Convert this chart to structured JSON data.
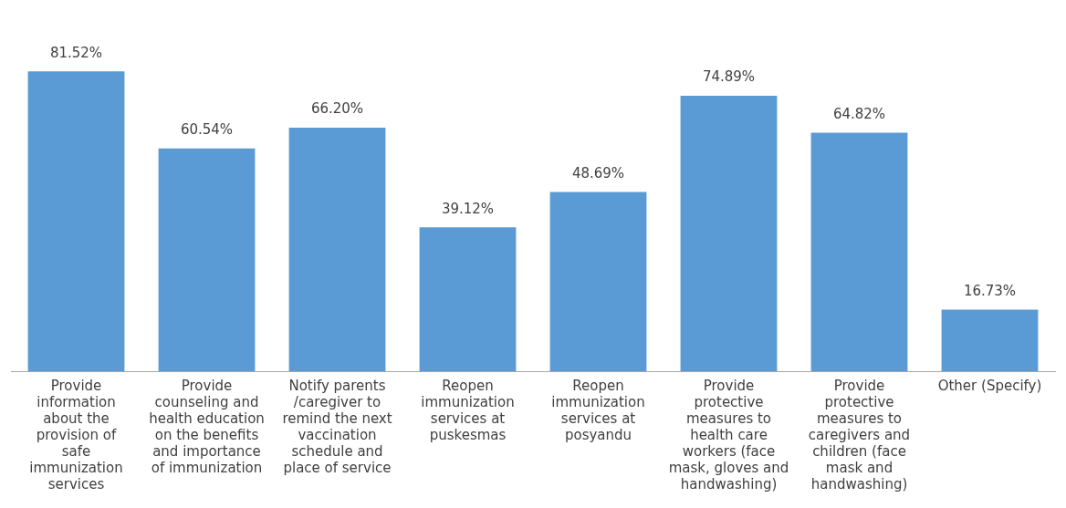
{
  "chart_data": {
    "type": "bar",
    "categories": [
      "Provide information about the provision of safe immunization services",
      "Provide counseling and health education on the benefits and importance of immunization",
      "Notify parents /caregiver to remind the next vaccination schedule and place of service",
      "Reopen immunization services at puskesmas",
      "Reopen immunization services at posyandu",
      "Provide protective measures to health care workers (face mask, gloves and handwashing)",
      "Provide protective measures to caregivers and children (face mask and handwashing)",
      "Other (Specify)"
    ],
    "values": [
      81.52,
      60.54,
      66.2,
      39.12,
      48.69,
      74.89,
      64.82,
      16.73
    ],
    "value_labels": [
      "81.52%",
      "60.54%",
      "66.20%",
      "39.12%",
      "48.69%",
      "74.89%",
      "64.82%",
      "16.73%"
    ],
    "color": "#5b9bd5",
    "grid": false,
    "legend": false,
    "tick_labels": "x"
  }
}
